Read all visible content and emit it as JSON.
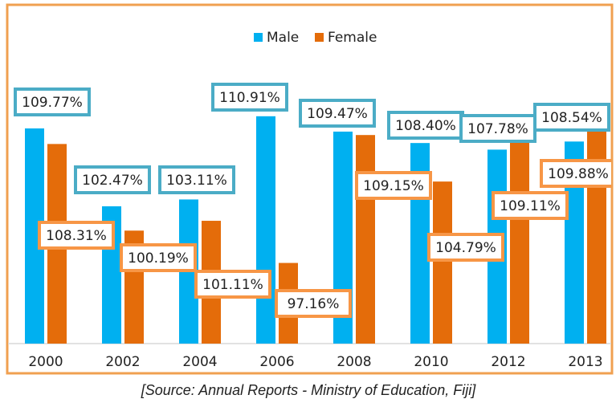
{
  "chart_data": {
    "type": "bar",
    "categories": [
      "2000",
      "2002",
      "2004",
      "2006",
      "2008",
      "2010",
      "2012",
      "2013"
    ],
    "series": [
      {
        "name": "Male",
        "color": "#00b0f0",
        "values": [
          109.77,
          102.47,
          103.11,
          110.91,
          109.47,
          108.4,
          107.78,
          108.54
        ],
        "value_labels": [
          "109.77%",
          "102.47%",
          "103.11%",
          "110.91%",
          "109.47%",
          "108.40%",
          "107.78%",
          "108.54%"
        ]
      },
      {
        "name": "Female",
        "color": "#e46c0a",
        "values": [
          108.31,
          100.19,
          101.11,
          97.16,
          109.15,
          104.79,
          109.11,
          109.88
        ],
        "value_labels": [
          "108.31%",
          "100.19%",
          "101.11%",
          "97.16%",
          "109.15%",
          "104.79%",
          "109.11%",
          "109.88%"
        ]
      }
    ],
    "ylim": [
      89.6,
      120
    ],
    "legend": "top",
    "source": "[Source: Annual Reports - Ministry of Education, Fiji]"
  }
}
